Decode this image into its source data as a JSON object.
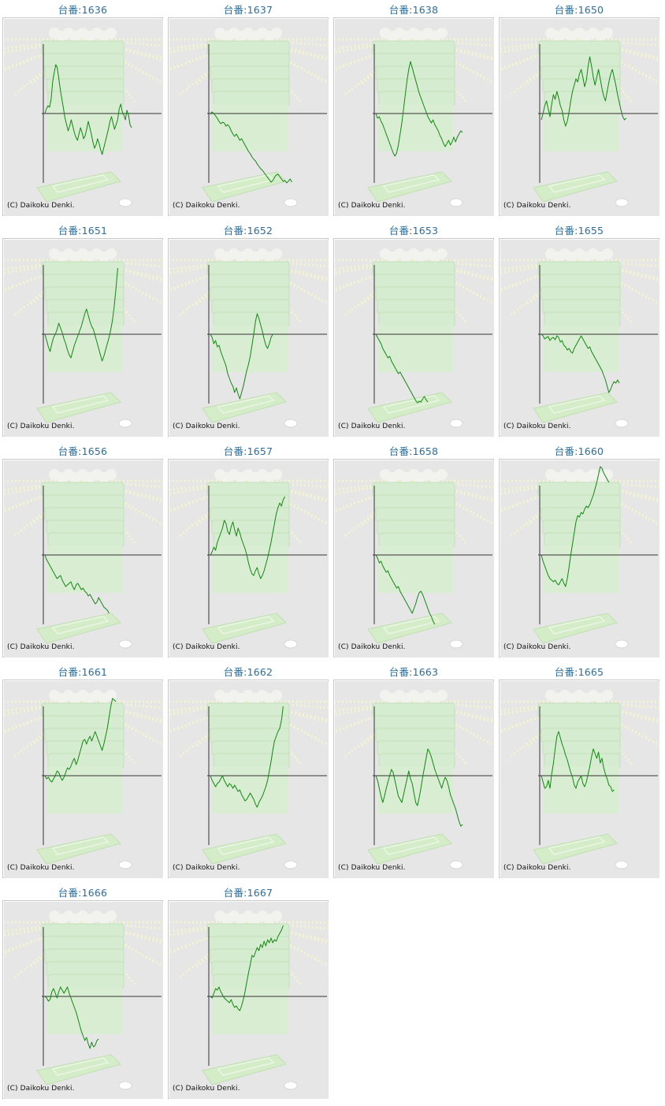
{
  "copyright_text": "(C) Daikoku Denki.",
  "colors": {
    "label": "#2a6ea0",
    "line": "#118811",
    "axis": "#333333",
    "background": "#e6e6e6"
  },
  "chart_data": [
    {
      "type": "line",
      "title": "台番:1636",
      "values": [
        0,
        6,
        10,
        8,
        18,
        40,
        52,
        62,
        58,
        44,
        30,
        18,
        6,
        -6,
        -14,
        -22,
        -16,
        -8,
        -16,
        -24,
        -30,
        -34,
        -26,
        -18,
        -24,
        -32,
        -28,
        -20,
        -10,
        -18,
        -26,
        -36,
        -44,
        -40,
        -32,
        -38,
        -46,
        -52,
        -44,
        -36,
        -28,
        -20,
        -10,
        -4,
        -12,
        -20,
        -14,
        -8,
        6,
        12,
        2,
        -2,
        -8,
        4,
        -2,
        -14,
        -18
      ]
    },
    {
      "type": "line",
      "title": "台番:1637",
      "values": [
        0,
        2,
        0,
        -3,
        -6,
        -10,
        -13,
        -11,
        -12,
        -16,
        -14,
        -17,
        -22,
        -26,
        -29,
        -26,
        -30,
        -34,
        -32,
        -36,
        -40,
        -44,
        -48,
        -51,
        -55,
        -58,
        -60,
        -64,
        -67,
        -70,
        -72,
        -75,
        -78,
        -81,
        -84,
        -87,
        -85,
        -81,
        -78,
        -77,
        -80,
        -83,
        -86,
        -85,
        -88,
        -86,
        -83,
        -87
      ]
    },
    {
      "type": "line",
      "title": "台番:1638",
      "values": [
        0,
        -6,
        -4,
        -10,
        -14,
        -20,
        -26,
        -32,
        -38,
        -44,
        -50,
        -54,
        -50,
        -40,
        -26,
        -12,
        6,
        24,
        42,
        56,
        66,
        58,
        50,
        42,
        34,
        26,
        20,
        14,
        8,
        2,
        -4,
        -8,
        -12,
        -8,
        -14,
        -18,
        -22,
        -28,
        -32,
        -38,
        -42,
        -38,
        -34,
        -40,
        -36,
        -30,
        -36,
        -30,
        -26,
        -22,
        -24
      ]
    },
    {
      "type": "line",
      "title": "台番:1650",
      "values": [
        -8,
        0,
        10,
        16,
        6,
        -4,
        12,
        24,
        18,
        28,
        20,
        10,
        4,
        -8,
        -16,
        -10,
        2,
        16,
        28,
        36,
        44,
        40,
        50,
        56,
        46,
        34,
        42,
        60,
        72,
        60,
        46,
        36,
        46,
        56,
        44,
        32,
        22,
        16,
        28,
        40,
        50,
        56,
        46,
        36,
        24,
        14,
        4,
        -4,
        -8,
        -6
      ]
    },
    {
      "type": "line",
      "title": "台番:1651",
      "values": [
        0,
        -8,
        -16,
        -22,
        -12,
        -4,
        0,
        6,
        14,
        8,
        2,
        -6,
        -12,
        -20,
        -26,
        -30,
        -22,
        -14,
        -8,
        -2,
        4,
        10,
        18,
        26,
        32,
        24,
        16,
        10,
        6,
        -2,
        -10,
        -18,
        -26,
        -34,
        -28,
        -20,
        -12,
        -4,
        6,
        18,
        36,
        58,
        84
      ]
    },
    {
      "type": "line",
      "title": "台番:1652",
      "values": [
        0,
        -4,
        -12,
        -8,
        -16,
        -14,
        -22,
        -28,
        -34,
        -40,
        -50,
        -56,
        -62,
        -66,
        -74,
        -68,
        -76,
        -82,
        -74,
        -66,
        -56,
        -46,
        -38,
        -28,
        -14,
        0,
        16,
        26,
        20,
        12,
        4,
        -6,
        -14,
        -18,
        -12,
        -4,
        0
      ]
    },
    {
      "type": "line",
      "title": "台番:1653",
      "values": [
        0,
        -4,
        -8,
        -12,
        -18,
        -22,
        -26,
        -30,
        -28,
        -34,
        -38,
        -42,
        -46,
        -50,
        -48,
        -52,
        -56,
        -60,
        -64,
        -68,
        -72,
        -76,
        -80,
        -84,
        -87,
        -85,
        -86,
        -82,
        -79,
        -83,
        -86
      ]
    },
    {
      "type": "line",
      "title": "台番:1655",
      "values": [
        0,
        -2,
        -6,
        -4,
        -3,
        -8,
        -5,
        -4,
        -7,
        -2,
        -4,
        -10,
        -8,
        -14,
        -16,
        -20,
        -18,
        -22,
        -24,
        -18,
        -14,
        -10,
        -6,
        -2,
        -6,
        -10,
        -14,
        -18,
        -16,
        -22,
        -26,
        -30,
        -34,
        -38,
        -42,
        -46,
        -52,
        -58,
        -66,
        -74,
        -70,
        -64,
        -60,
        -62,
        -58,
        -62
      ]
    },
    {
      "type": "line",
      "title": "台番:1656",
      "values": [
        0,
        -6,
        -10,
        -14,
        -18,
        -22,
        -26,
        -30,
        -28,
        -26,
        -32,
        -36,
        -40,
        -38,
        -36,
        -34,
        -40,
        -44,
        -38,
        -36,
        -40,
        -44,
        -42,
        -46,
        -48,
        -52,
        -50,
        -54,
        -58,
        -62,
        -60,
        -54,
        -58,
        -62,
        -66,
        -68,
        -70,
        -74
      ]
    },
    {
      "type": "line",
      "title": "台番:1657",
      "values": [
        0,
        4,
        10,
        6,
        16,
        22,
        28,
        34,
        44,
        40,
        30,
        26,
        36,
        42,
        32,
        24,
        34,
        28,
        20,
        14,
        8,
        0,
        -10,
        -18,
        -24,
        -26,
        -20,
        -16,
        -24,
        -30,
        -26,
        -20,
        -12,
        -4,
        6,
        16,
        28,
        40,
        52,
        60,
        66,
        62,
        70,
        74
      ]
    },
    {
      "type": "line",
      "title": "台番:1658",
      "values": [
        0,
        -4,
        -10,
        -8,
        -14,
        -18,
        -22,
        -20,
        -26,
        -30,
        -34,
        -38,
        -42,
        -40,
        -46,
        -50,
        -54,
        -58,
        -62,
        -66,
        -70,
        -74,
        -68,
        -62,
        -54,
        -48,
        -46,
        -50,
        -56,
        -62,
        -68,
        -74,
        -78,
        -84,
        -88
      ]
    },
    {
      "type": "line",
      "title": "台番:1660",
      "values": [
        0,
        -8,
        -14,
        -20,
        -26,
        -30,
        -32,
        -34,
        -32,
        -36,
        -38,
        -34,
        -30,
        -36,
        -40,
        -30,
        -16,
        0,
        14,
        28,
        42,
        50,
        48,
        54,
        52,
        58,
        62,
        60,
        64,
        70,
        76,
        84,
        92,
        102,
        112,
        110,
        104,
        100,
        96,
        92
      ]
    },
    {
      "type": "line",
      "title": "台番:1661",
      "values": [
        0,
        -4,
        -2,
        -6,
        -8,
        -4,
        0,
        6,
        4,
        -2,
        -6,
        -2,
        4,
        10,
        8,
        12,
        18,
        22,
        14,
        20,
        28,
        36,
        44,
        46,
        40,
        46,
        50,
        44,
        50,
        56,
        50,
        44,
        38,
        32,
        40,
        50,
        60,
        74,
        88,
        98,
        96,
        94
      ]
    },
    {
      "type": "line",
      "title": "台番:1662",
      "values": [
        0,
        -6,
        -10,
        -14,
        -10,
        -8,
        -4,
        0,
        -6,
        -10,
        -14,
        -10,
        -12,
        -16,
        -12,
        -16,
        -20,
        -18,
        -24,
        -28,
        -32,
        -30,
        -26,
        -22,
        -26,
        -30,
        -36,
        -40,
        -34,
        -30,
        -26,
        -20,
        -14,
        -6,
        6,
        18,
        32,
        44,
        50,
        56,
        60,
        70,
        88
      ]
    },
    {
      "type": "line",
      "title": "台番:1663",
      "values": [
        0,
        -6,
        -16,
        -26,
        -34,
        -26,
        -16,
        -8,
        0,
        8,
        4,
        -6,
        -16,
        -26,
        -30,
        -34,
        -24,
        -14,
        -4,
        6,
        -4,
        -10,
        -22,
        -34,
        -38,
        -28,
        -16,
        -2,
        10,
        22,
        34,
        30,
        24,
        16,
        8,
        2,
        -4,
        -10,
        -16,
        -8,
        -2,
        -6,
        -14,
        -24,
        -30,
        -36,
        -42,
        -50,
        -58,
        -64,
        -62
      ]
    },
    {
      "type": "line",
      "title": "台番:1665",
      "values": [
        0,
        -8,
        -16,
        -14,
        -6,
        -16,
        2,
        16,
        34,
        50,
        56,
        48,
        40,
        34,
        26,
        20,
        12,
        4,
        -2,
        -12,
        -16,
        -8,
        -4,
        0,
        -10,
        -14,
        -8,
        2,
        12,
        24,
        34,
        28,
        22,
        30,
        16,
        22,
        10,
        2,
        -4,
        -12,
        -14,
        -20,
        -18
      ]
    },
    {
      "type": "line",
      "title": "台番:1666",
      "values": [
        0,
        -2,
        -6,
        -4,
        6,
        10,
        4,
        -2,
        6,
        12,
        8,
        4,
        8,
        12,
        4,
        -2,
        -8,
        -14,
        -20,
        -28,
        -36,
        -44,
        -50,
        -56,
        -52,
        -60,
        -66,
        -58,
        -64,
        -62,
        -56,
        -54
      ]
    },
    {
      "type": "line",
      "title": "台番:1667",
      "values": [
        0,
        -2,
        4,
        10,
        8,
        12,
        6,
        2,
        -2,
        -4,
        -6,
        -8,
        -4,
        -10,
        -14,
        -12,
        -16,
        -18,
        -12,
        -4,
        6,
        18,
        30,
        40,
        52,
        50,
        56,
        62,
        58,
        66,
        62,
        70,
        64,
        72,
        68,
        74,
        68,
        72,
        70,
        76,
        80,
        84,
        90
      ]
    }
  ]
}
